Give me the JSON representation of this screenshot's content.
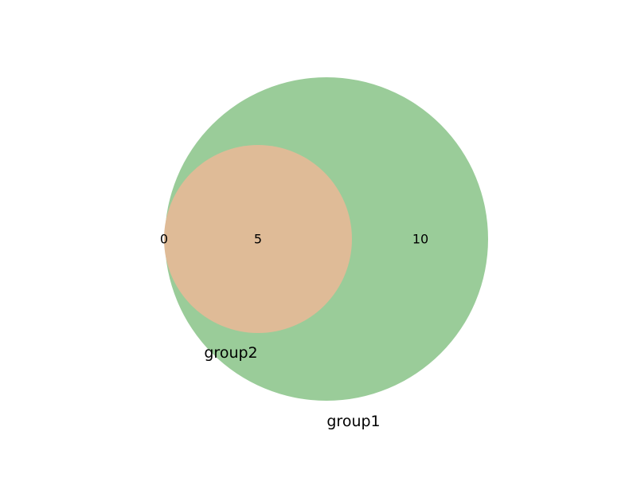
{
  "sets": [
    {
      "id": "group1",
      "label": "group1",
      "color": "#9ACC99"
    },
    {
      "id": "group2",
      "label": "group2",
      "color": "#DFBB97"
    }
  ],
  "regions": {
    "group1_only": "10",
    "group2_only": "0",
    "intersection": "5"
  },
  "background": "#ffffff"
}
